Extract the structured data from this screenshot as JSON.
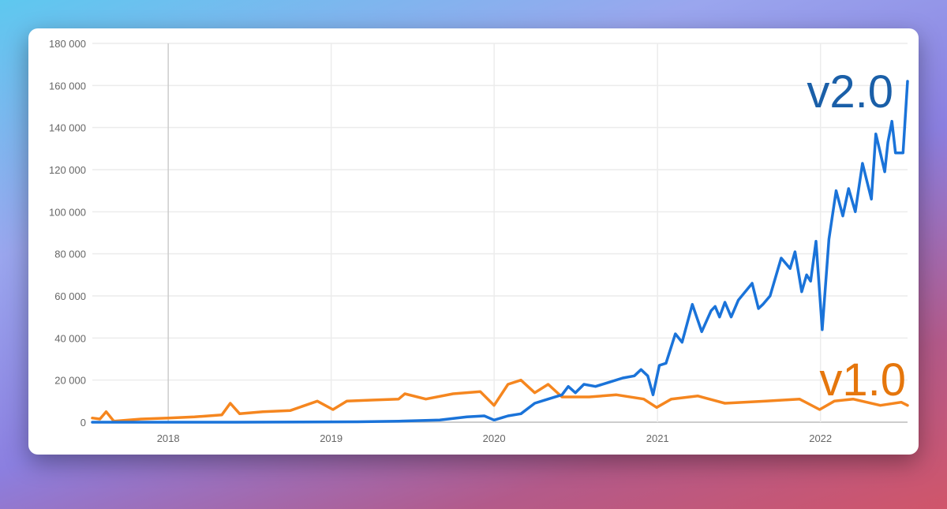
{
  "chart_data": {
    "type": "line",
    "title": "",
    "xlabel": "",
    "ylabel": "",
    "ylim": [
      0,
      180000
    ],
    "xlim": [
      "2017-07-15",
      "2022-07-15"
    ],
    "yticks": [
      0,
      20000,
      40000,
      60000,
      80000,
      100000,
      120000,
      140000,
      160000,
      180000
    ],
    "ytick_labels": [
      "0",
      "20 000",
      "40 000",
      "60 000",
      "80 000",
      "100 000",
      "120 000",
      "140 000",
      "160 000",
      "180 000"
    ],
    "xticks": [
      "2018-01-01",
      "2019-01-01",
      "2020-01-01",
      "2021-01-01",
      "2022-01-01"
    ],
    "xtick_labels": [
      "2018",
      "2019",
      "2020",
      "2021",
      "2022"
    ],
    "grid": true,
    "series": [
      {
        "name": "v2.0",
        "color": "#1a73d9",
        "label_color": "#1a5fa8",
        "points": [
          [
            "2017-07-15",
            0
          ],
          [
            "2018-06-01",
            0
          ],
          [
            "2019-03-01",
            200
          ],
          [
            "2019-06-01",
            500
          ],
          [
            "2019-09-01",
            1000
          ],
          [
            "2019-11-01",
            2500
          ],
          [
            "2019-12-10",
            3000
          ],
          [
            "2020-01-01",
            1000
          ],
          [
            "2020-02-01",
            3000
          ],
          [
            "2020-03-01",
            4000
          ],
          [
            "2020-04-01",
            9000
          ],
          [
            "2020-05-01",
            11000
          ],
          [
            "2020-06-01",
            13000
          ],
          [
            "2020-06-15",
            17000
          ],
          [
            "2020-07-01",
            14000
          ],
          [
            "2020-07-20",
            18000
          ],
          [
            "2020-08-15",
            17000
          ],
          [
            "2020-09-15",
            19000
          ],
          [
            "2020-10-15",
            21000
          ],
          [
            "2020-11-10",
            22000
          ],
          [
            "2020-11-25",
            25000
          ],
          [
            "2020-12-10",
            22000
          ],
          [
            "2020-12-22",
            13000
          ],
          [
            "2021-01-05",
            27000
          ],
          [
            "2021-01-20",
            28000
          ],
          [
            "2021-02-10",
            42000
          ],
          [
            "2021-02-25",
            38000
          ],
          [
            "2021-03-20",
            56000
          ],
          [
            "2021-04-10",
            43000
          ],
          [
            "2021-05-01",
            53000
          ],
          [
            "2021-05-10",
            55000
          ],
          [
            "2021-05-20",
            50000
          ],
          [
            "2021-06-01",
            57000
          ],
          [
            "2021-06-15",
            50000
          ],
          [
            "2021-07-01",
            58000
          ],
          [
            "2021-08-01",
            66000
          ],
          [
            "2021-08-15",
            54000
          ],
          [
            "2021-08-25",
            56000
          ],
          [
            "2021-09-10",
            60000
          ],
          [
            "2021-10-05",
            78000
          ],
          [
            "2021-10-25",
            73000
          ],
          [
            "2021-11-05",
            81000
          ],
          [
            "2021-11-20",
            62000
          ],
          [
            "2021-12-01",
            70000
          ],
          [
            "2021-12-10",
            67000
          ],
          [
            "2021-12-22",
            86000
          ],
          [
            "2022-01-05",
            44000
          ],
          [
            "2022-01-20",
            87000
          ],
          [
            "2022-02-05",
            110000
          ],
          [
            "2022-02-20",
            98000
          ],
          [
            "2022-03-05",
            111000
          ],
          [
            "2022-03-20",
            100000
          ],
          [
            "2022-04-05",
            123000
          ],
          [
            "2022-04-25",
            106000
          ],
          [
            "2022-05-05",
            137000
          ],
          [
            "2022-05-15",
            128000
          ],
          [
            "2022-05-25",
            119000
          ],
          [
            "2022-06-01",
            133000
          ],
          [
            "2022-06-10",
            143000
          ],
          [
            "2022-06-18",
            128000
          ],
          [
            "2022-07-05",
            128000
          ],
          [
            "2022-07-15",
            162000
          ]
        ]
      },
      {
        "name": "v1.0",
        "color": "#f5861f",
        "label_color": "#e5760c",
        "points": [
          [
            "2017-07-15",
            2000
          ],
          [
            "2017-08-01",
            1500
          ],
          [
            "2017-08-15",
            5000
          ],
          [
            "2017-09-01",
            500
          ],
          [
            "2017-11-01",
            1500
          ],
          [
            "2018-01-01",
            2000
          ],
          [
            "2018-03-01",
            2500
          ],
          [
            "2018-05-01",
            3500
          ],
          [
            "2018-05-20",
            9000
          ],
          [
            "2018-06-10",
            4000
          ],
          [
            "2018-08-01",
            5000
          ],
          [
            "2018-10-01",
            5500
          ],
          [
            "2018-12-01",
            10000
          ],
          [
            "2019-01-05",
            6000
          ],
          [
            "2019-02-05",
            10000
          ],
          [
            "2019-04-01",
            10500
          ],
          [
            "2019-06-01",
            11000
          ],
          [
            "2019-06-15",
            13500
          ],
          [
            "2019-08-01",
            11000
          ],
          [
            "2019-10-01",
            13500
          ],
          [
            "2019-12-01",
            14500
          ],
          [
            "2020-01-01",
            8000
          ],
          [
            "2020-02-01",
            18000
          ],
          [
            "2020-03-01",
            20000
          ],
          [
            "2020-04-01",
            14000
          ],
          [
            "2020-05-01",
            18000
          ],
          [
            "2020-06-01",
            12000
          ],
          [
            "2020-08-01",
            12000
          ],
          [
            "2020-10-01",
            13000
          ],
          [
            "2020-12-01",
            11000
          ],
          [
            "2020-12-30",
            7000
          ],
          [
            "2021-02-01",
            11000
          ],
          [
            "2021-04-01",
            12500
          ],
          [
            "2021-06-01",
            9000
          ],
          [
            "2021-09-01",
            10000
          ],
          [
            "2021-11-15",
            11000
          ],
          [
            "2021-12-30",
            6000
          ],
          [
            "2022-02-01",
            10000
          ],
          [
            "2022-03-15",
            11000
          ],
          [
            "2022-05-15",
            8000
          ],
          [
            "2022-07-01",
            9500
          ],
          [
            "2022-07-15",
            8000
          ]
        ]
      }
    ]
  }
}
